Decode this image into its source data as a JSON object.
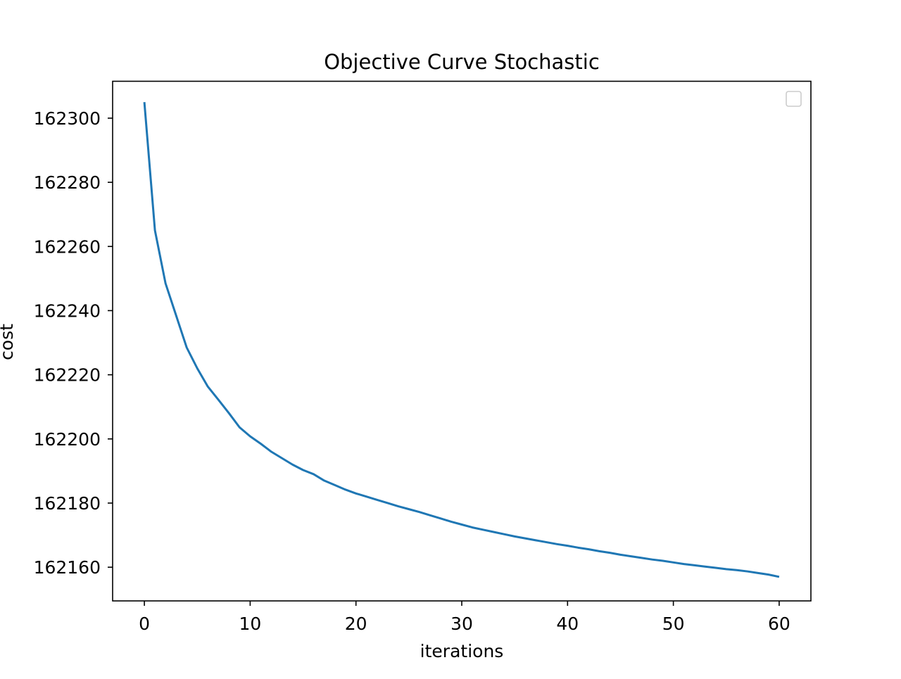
{
  "chart_data": {
    "type": "line",
    "title": "Objective Curve Stochastic",
    "xlabel": "iterations",
    "ylabel": "cost",
    "xlim": [
      -3,
      63
    ],
    "ylim": [
      162149.5,
      162311.5
    ],
    "xticks": [
      0,
      10,
      20,
      30,
      40,
      50,
      60
    ],
    "yticks": [
      162160,
      162180,
      162200,
      162220,
      162240,
      162260,
      162280,
      162300
    ],
    "grid": false,
    "legend": {
      "placement": "top-right",
      "entries": []
    },
    "series": [
      {
        "color": "#1f77b4",
        "x": [
          0,
          1,
          2,
          3,
          4,
          5,
          6,
          7,
          8,
          9,
          10,
          11,
          12,
          13,
          14,
          15,
          16,
          17,
          18,
          19,
          20,
          21,
          22,
          23,
          24,
          25,
          26,
          27,
          28,
          29,
          30,
          31,
          32,
          33,
          34,
          35,
          36,
          37,
          38,
          39,
          40,
          41,
          42,
          43,
          44,
          45,
          46,
          47,
          48,
          49,
          50,
          51,
          52,
          53,
          54,
          55,
          56,
          57,
          58,
          59,
          60
        ],
        "values": [
          162305,
          162265,
          162248.5,
          162238.5,
          162228.5,
          162222,
          162216.3,
          162212.2,
          162208,
          162203.6,
          162200.8,
          162198.5,
          162196,
          162194,
          162192,
          162190.3,
          162189,
          162187,
          162185.6,
          162184.2,
          162183,
          162182,
          162181,
          162180,
          162179,
          162178.1,
          162177.2,
          162176.2,
          162175.2,
          162174.2,
          162173.3,
          162172.4,
          162171.7,
          162171,
          162170.3,
          162169.6,
          162169,
          162168.4,
          162167.8,
          162167.2,
          162166.7,
          162166.1,
          162165.6,
          162165,
          162164.5,
          162163.9,
          162163.4,
          162162.9,
          162162.4,
          162162,
          162161.5,
          162161,
          162160.6,
          162160.2,
          162159.8,
          162159.4,
          162159.1,
          162158.7,
          162158.2,
          162157.7,
          162157
        ]
      }
    ]
  }
}
